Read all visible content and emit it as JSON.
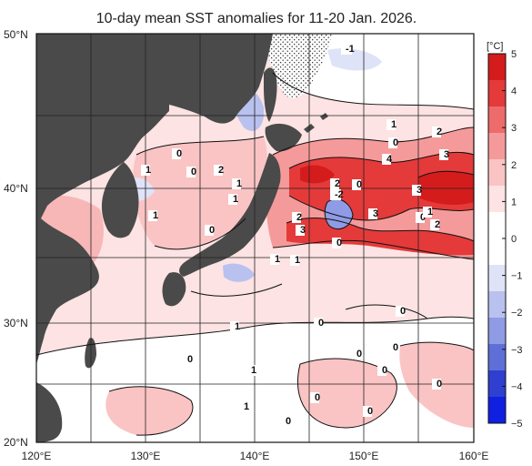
{
  "title": "10-day mean SST anomalies for 11-20 Jan. 2026.",
  "lat_labels": [
    "50°N",
    "40°N",
    "30°N",
    "20°N"
  ],
  "lon_labels": [
    "120°E",
    "130°E",
    "140°E",
    "150°E",
    "160°E"
  ],
  "legend": {
    "unit": "[°C]",
    "ticks": [
      "5",
      "4",
      "3",
      "2",
      "1",
      "0",
      "−1",
      "−2",
      "−3",
      "−4",
      "−5"
    ],
    "colors": [
      "#d41c1c",
      "#e43a3a",
      "#ee6b6b",
      "#f59a9a",
      "#fac4c4",
      "#fde3e3",
      "#ffffff",
      "#ffffff",
      "#dfe3f7",
      "#b9c1ef",
      "#8f9be4",
      "#5f6fd8",
      "#2f3fd0",
      "#1020e0"
    ]
  },
  "contour_labels": [
    "-1",
    "1",
    "0",
    "2",
    "3",
    "4",
    "3",
    "0",
    "1",
    "2",
    "2",
    "-2",
    "0",
    "3",
    "0",
    "0",
    "2",
    "1",
    "1",
    "1",
    "0",
    "1",
    "2",
    "3",
    "1",
    "1",
    "1",
    "0",
    "0",
    "0",
    "0",
    "1",
    "0",
    "0",
    "0",
    "0",
    "0",
    "1",
    "0",
    "0"
  ],
  "colors": {
    "land": "#4a4a4a",
    "ocean_base": "#fbe6e6",
    "warm": "#e8474a",
    "cool": "#8f9be4"
  }
}
